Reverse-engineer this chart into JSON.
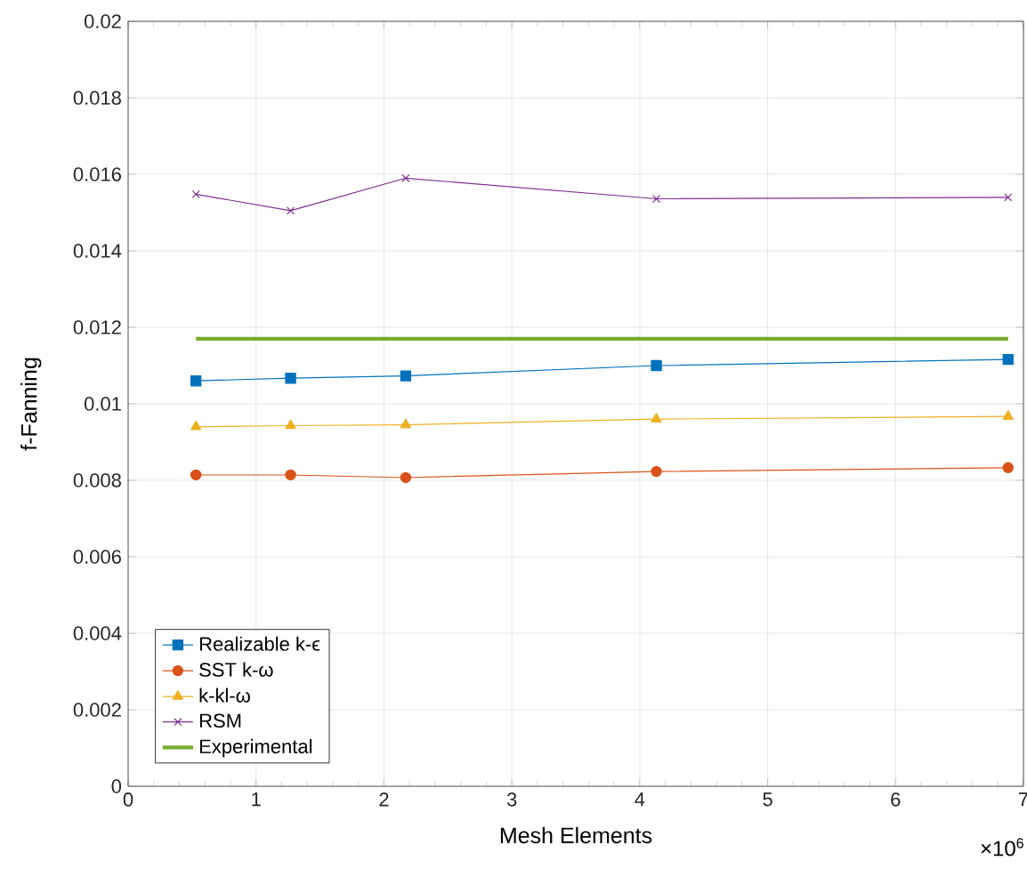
{
  "chart_data": {
    "type": "line",
    "xlabel": "Mesh Elements",
    "ylabel": "f-Fanning",
    "xlim": [
      0,
      7
    ],
    "ylim": [
      0,
      0.02
    ],
    "xticks": [
      0,
      1,
      2,
      3,
      4,
      5,
      6,
      7
    ],
    "yticks": [
      0,
      0.002,
      0.004,
      0.006,
      0.008,
      0.01,
      0.012,
      0.014,
      0.016,
      0.018,
      0.02
    ],
    "annotations": [
      "×10$^{6}$"
    ],
    "grid": true,
    "legend": "bottom left",
    "line_style": "solid",
    "series": [
      {
        "name": "Realizable k-ϵ",
        "color": "#0072bd",
        "marker": "square",
        "x": [
          0.53,
          1.27,
          2.17,
          4.13,
          6.88
        ],
        "values": [
          0.0106,
          0.01067,
          0.01073,
          0.011,
          0.01116
        ]
      },
      {
        "name": "SST k-ω",
        "color": "#d95319",
        "marker": "circle",
        "x": [
          0.53,
          1.27,
          2.17,
          4.13,
          6.88
        ],
        "values": [
          0.00814,
          0.00814,
          0.00807,
          0.00823,
          0.00833
        ]
      },
      {
        "name": "k-kl-ω",
        "color": "#edb120",
        "marker": "triangle",
        "x": [
          0.53,
          1.27,
          2.17,
          4.13,
          6.88
        ],
        "values": [
          0.0094,
          0.00943,
          0.00945,
          0.0096,
          0.00967
        ]
      },
      {
        "name": "RSM",
        "color": "#7e2f8e",
        "marker": "cross",
        "x": [
          0.53,
          1.27,
          2.17,
          4.13,
          6.88
        ],
        "values": [
          0.01548,
          0.01505,
          0.0159,
          0.01536,
          0.0154
        ]
      },
      {
        "name": "Experimental",
        "color": "#77ac30",
        "marker": "none",
        "x": [
          0.53,
          6.88
        ],
        "values": [
          0.0117,
          0.0117
        ]
      }
    ]
  }
}
